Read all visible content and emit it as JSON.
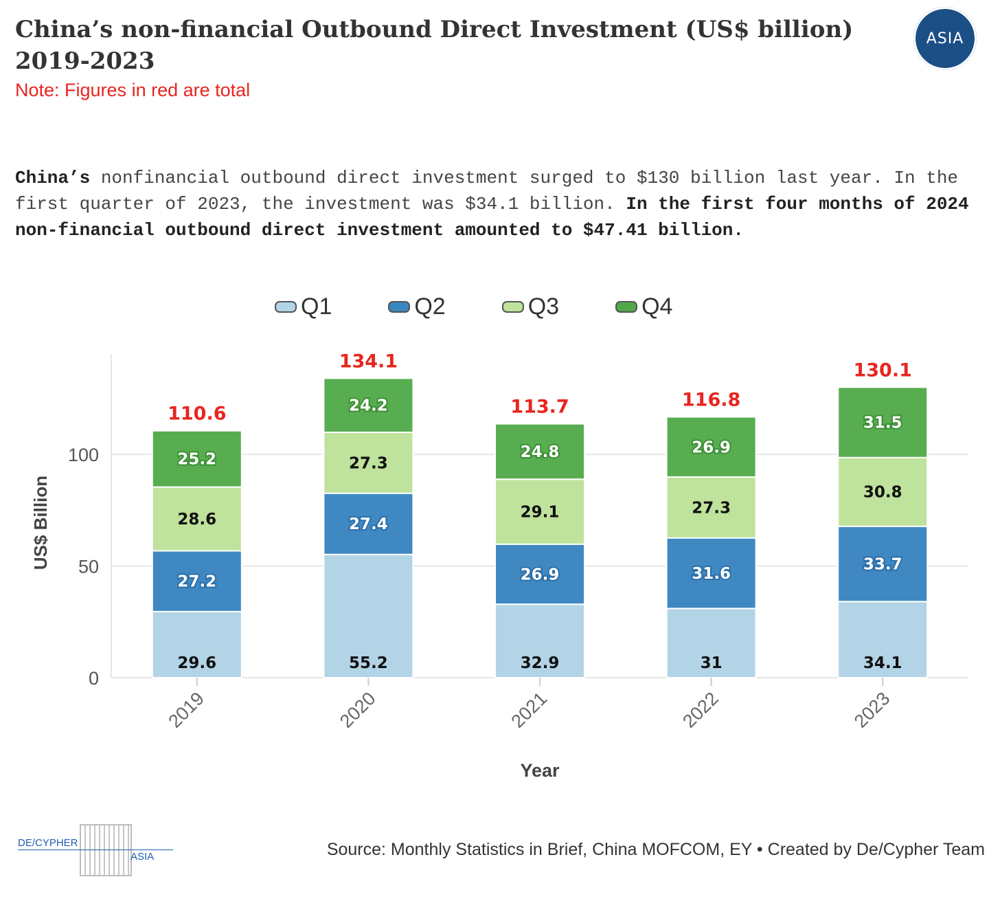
{
  "header": {
    "title": "China’s non-financial Outbound Direct Investment (US$ billion) 2019-2023",
    "note": "Note: Figures in red are total",
    "logo_text": "ASIA"
  },
  "description": {
    "part1": "China’s",
    "part2": " nonfinancial outbound direct investment surged to $130 billion last year. In the first quarter of 2023, the investment was $34.1 billion. ",
    "part3": "In the first four months of 2024 non-financial outbound direct investment amounted to $47.41 billion."
  },
  "legend": [
    {
      "label": "Q1",
      "color": "#b3d4e6"
    },
    {
      "label": "Q2",
      "color": "#3a87c0"
    },
    {
      "label": "Q3",
      "color": "#bfe29c"
    },
    {
      "label": "Q4",
      "color": "#50a84a"
    }
  ],
  "chart_data": {
    "type": "bar",
    "stacked": true,
    "categories": [
      "2019",
      "2020",
      "2021",
      "2022",
      "2023"
    ],
    "series": [
      {
        "name": "Q1",
        "values": [
          29.6,
          55.2,
          32.9,
          31,
          34.1
        ],
        "color": "#b3d4e6",
        "label_color": "#111111"
      },
      {
        "name": "Q2",
        "values": [
          27.2,
          27.4,
          26.9,
          31.6,
          33.7
        ],
        "color": "#3f88c2",
        "label_color": "#ffffff"
      },
      {
        "name": "Q3",
        "values": [
          28.6,
          27.3,
          29.1,
          27.3,
          30.8
        ],
        "color": "#bfe29c",
        "label_color": "#111111"
      },
      {
        "name": "Q4",
        "values": [
          25.2,
          24.2,
          24.8,
          26.9,
          31.5
        ],
        "color": "#57ad4f",
        "label_color": "#ffffff"
      }
    ],
    "totals": [
      110.6,
      134.1,
      113.7,
      116.8,
      130.1
    ],
    "total_color": "#e8251f",
    "xlabel": "Year",
    "ylabel": "US$ Billion",
    "ylim": [
      0,
      145
    ],
    "yticks": [
      0,
      50,
      100
    ],
    "grid": true
  },
  "footer": {
    "logo_left": "DE/CYPHER",
    "logo_right": "ASIA",
    "source": "Source: Monthly Statistics in Brief, China MOFCOM, EY • Created by De/Cypher Team"
  }
}
